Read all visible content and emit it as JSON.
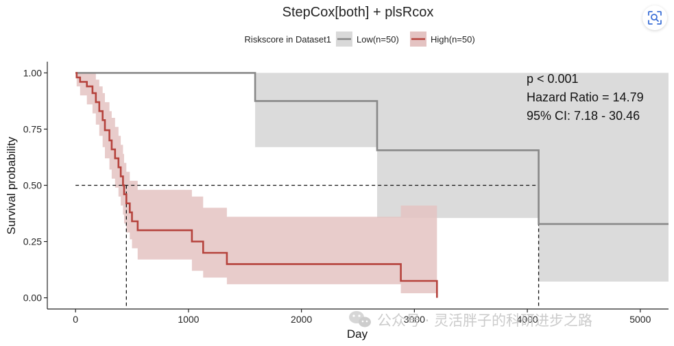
{
  "colors": {
    "low_line": "#888888",
    "low_band": "#d9d9d9",
    "high_line": "#b5423c",
    "high_band": "#e4c3c2",
    "axis": "#222222",
    "lens_icon": "#3b6fd6"
  },
  "icons": {
    "lens": "lens-search-icon",
    "wechat": "wechat-icon"
  },
  "watermark": {
    "text": "公众号 · 灵活胖子的科研进步之路"
  },
  "chart_data": {
    "type": "line",
    "subtype": "kaplan-meier survival curve",
    "title": "StepCox[both] + plsRcox",
    "xlabel": "Day",
    "ylabel": "Survival probability",
    "xlim": [
      -250,
      5250
    ],
    "ylim": [
      -0.05,
      1.05
    ],
    "xticks": [
      0,
      1000,
      2000,
      3000,
      4000,
      5000
    ],
    "xtick_labels": [
      "0",
      "1000",
      "2000",
      "3000",
      "4000",
      "5000"
    ],
    "yticks": [
      0,
      0.25,
      0.5,
      0.75,
      1.0
    ],
    "ytick_labels": [
      "0.00",
      "0.25",
      "0.50",
      "0.75",
      "1.00"
    ],
    "grid": false,
    "legend": {
      "title": "Riskscore in Dataset1",
      "position": "top",
      "entries": [
        "Low(n=50)",
        "High(n=50)"
      ]
    },
    "annotations": [
      "p < 0.001",
      "Hazard Ratio = 14.79",
      "95% CI: 7.18 - 30.46"
    ],
    "median_reference": {
      "y": 0.5,
      "medians": [
        450,
        4100
      ]
    },
    "series": [
      {
        "name": "Low(n=50)",
        "color": "#888888",
        "x": [
          0,
          1590,
          2670,
          4100,
          5250
        ],
        "y": [
          1.0,
          0.875,
          0.656,
          0.328,
          0.328
        ],
        "lower": [
          1.0,
          0.67,
          0.355,
          0.072,
          0.072
        ],
        "upper": [
          1.0,
          1.0,
          1.0,
          1.0,
          1.0
        ]
      },
      {
        "name": "High(n=50)",
        "color": "#b5423c",
        "x": [
          0,
          10,
          40,
          100,
          150,
          180,
          210,
          240,
          260,
          300,
          320,
          350,
          380,
          400,
          420,
          430,
          450,
          480,
          500,
          550,
          690,
          1030,
          1130,
          1340,
          2880,
          3200
        ],
        "y": [
          1.0,
          0.98,
          0.96,
          0.94,
          0.91,
          0.87,
          0.83,
          0.79,
          0.745,
          0.7,
          0.66,
          0.62,
          0.58,
          0.54,
          0.5,
          0.46,
          0.42,
          0.38,
          0.34,
          0.3,
          0.3,
          0.25,
          0.2,
          0.15,
          0.075,
          0.0
        ],
        "lower": [
          1.0,
          0.94,
          0.9,
          0.86,
          0.82,
          0.77,
          0.72,
          0.67,
          0.62,
          0.57,
          0.53,
          0.49,
          0.45,
          0.41,
          0.37,
          0.33,
          0.29,
          0.26,
          0.22,
          0.17,
          0.17,
          0.12,
          0.09,
          0.06,
          0.02,
          0.0
        ],
        "upper": [
          1.0,
          1.0,
          1.0,
          1.0,
          1.0,
          0.97,
          0.94,
          0.91,
          0.87,
          0.83,
          0.8,
          0.76,
          0.72,
          0.68,
          0.64,
          0.6,
          0.56,
          0.52,
          0.52,
          0.48,
          0.48,
          0.45,
          0.4,
          0.36,
          0.41,
          0.41
        ]
      }
    ]
  }
}
